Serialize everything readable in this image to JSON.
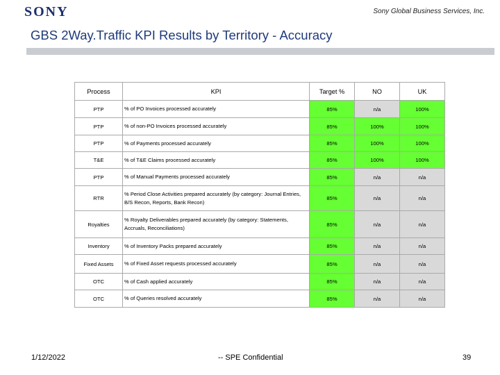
{
  "header": {
    "logo": "SONY",
    "company": "Sony Global Business Services, Inc."
  },
  "title": "GBS 2Way.Traffic KPI Results by Territory - Accuracy",
  "colors": {
    "green": "#66ff33",
    "title": "#1f3a7a",
    "logo": "#1c2f6b",
    "bar": "#c9ccd1"
  },
  "table": {
    "headers": [
      "Process",
      "KPI",
      "Target %",
      "NO",
      "UK"
    ],
    "rows": [
      {
        "process": "PTP",
        "kpi": "% of PO Invoices processed accurately",
        "target": "85%",
        "no": "n/a",
        "uk": "100%"
      },
      {
        "process": "PTP",
        "kpi": "% of non-PO Invoices processed accurately",
        "target": "85%",
        "no": "100%",
        "uk": "100%"
      },
      {
        "process": "PTP",
        "kpi": "% of Payments processed accurately",
        "target": "85%",
        "no": "100%",
        "uk": "100%"
      },
      {
        "process": "T&E",
        "kpi": "% of T&E Claims processed accurately",
        "target": "85%",
        "no": "100%",
        "uk": "100%"
      },
      {
        "process": "PTP",
        "kpi": "% of Manual Payments processed accurately",
        "target": "85%",
        "no": "n/a",
        "uk": "n/a"
      },
      {
        "process": "RTR",
        "kpi": "% Period Close Activities prepared accurately (by category: Journal Entries, B/S Recon, Reports, Bank Recon)",
        "target": "85%",
        "no": "n/a",
        "uk": "n/a"
      },
      {
        "process": "Royalties",
        "kpi": "% Royalty Deliverables prepared accurately (by category: Statements, Accruals, Reconciliations)",
        "target": "85%",
        "no": "n/a",
        "uk": "n/a"
      },
      {
        "process": "Inventory",
        "kpi": "% of Inventory Packs prepared accurately",
        "target": "85%",
        "no": "n/a",
        "uk": "n/a"
      },
      {
        "process": "Fixed Assets",
        "kpi": "% of Fixed Asset requests processed accurately",
        "target": "85%",
        "no": "n/a",
        "uk": "n/a"
      },
      {
        "process": "OTC",
        "kpi": "% of Cash applied accurately",
        "target": "85%",
        "no": "n/a",
        "uk": "n/a"
      },
      {
        "process": "OTC",
        "kpi": "% of Queries resolved accurately",
        "target": "85%",
        "no": "n/a",
        "uk": "n/a"
      }
    ]
  },
  "footer": {
    "date": "1/12/2022",
    "confidential": "-- SPE Confidential",
    "page": "39"
  }
}
